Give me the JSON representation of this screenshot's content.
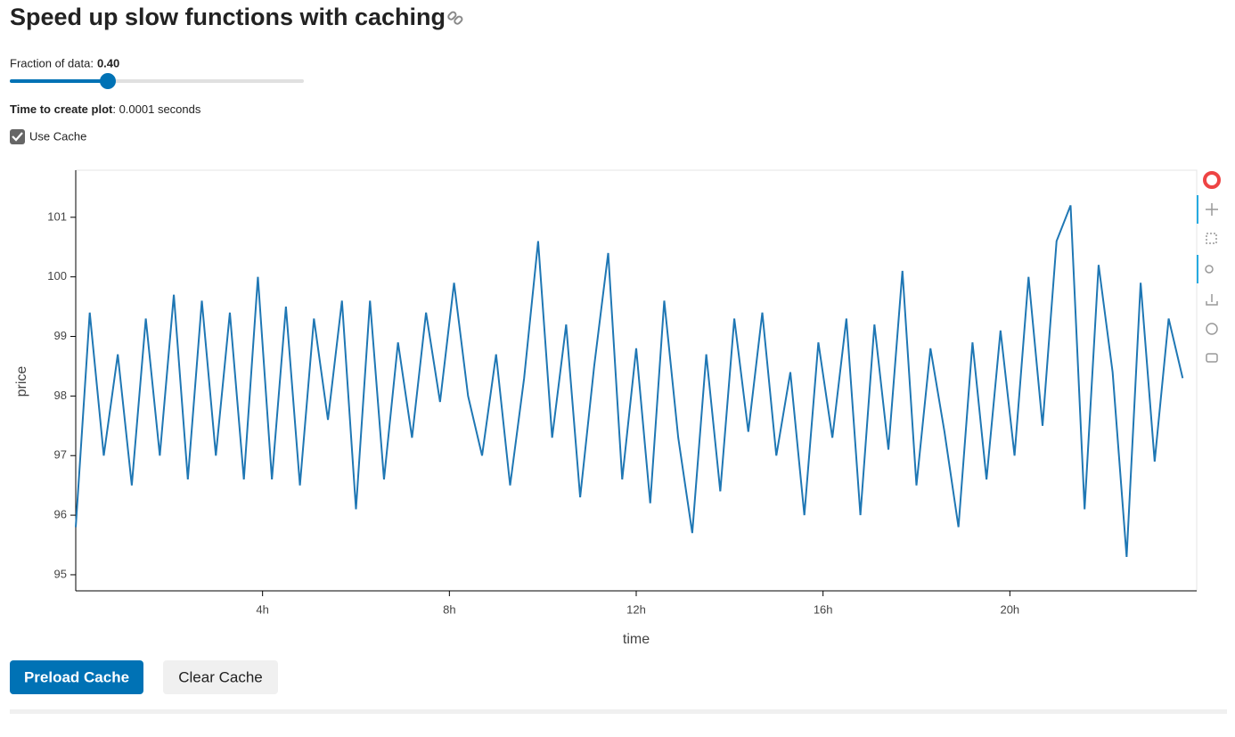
{
  "header": {
    "title": "Speed up slow functions with caching"
  },
  "controls": {
    "slider": {
      "label": "Fraction of data:",
      "value": "0.40"
    },
    "timing": {
      "label": "Time to create plot",
      "text": ": 0.0001 seconds"
    },
    "checkbox": {
      "label": "Use Cache",
      "checked": true
    }
  },
  "chart_data": {
    "type": "line",
    "x_label": "time",
    "y_label": "price",
    "xlim": [
      0,
      24
    ],
    "ylim": [
      94.73,
      101.79
    ],
    "xticks": [
      {
        "value": 4,
        "label": "4h"
      },
      {
        "value": 8,
        "label": "8h"
      },
      {
        "value": 12,
        "label": "12h"
      },
      {
        "value": 16,
        "label": "16h"
      },
      {
        "value": 20,
        "label": "20h"
      }
    ],
    "yticks": [
      95,
      96,
      97,
      98,
      99,
      100,
      101
    ],
    "x": [
      0.0,
      0.3,
      0.6,
      0.9,
      1.2,
      1.5,
      1.8,
      2.1,
      2.4,
      2.7,
      3.0,
      3.3,
      3.6,
      3.9,
      4.2,
      4.5,
      4.8,
      5.1,
      5.4,
      5.7,
      6.0,
      6.3,
      6.6,
      6.9,
      7.2,
      7.5,
      7.8,
      8.1,
      8.4,
      8.7,
      9.0,
      9.3,
      9.6,
      9.9,
      10.2,
      10.5,
      10.8,
      11.1,
      11.4,
      11.7,
      12.0,
      12.3,
      12.6,
      12.9,
      13.2,
      13.5,
      13.8,
      14.1,
      14.4,
      14.7,
      15.0,
      15.3,
      15.6,
      15.9,
      16.2,
      16.5,
      16.8,
      17.1,
      17.4,
      17.7,
      18.0,
      18.3,
      18.6,
      18.9,
      19.2,
      19.5,
      19.8,
      20.1,
      20.4,
      20.7,
      21.0,
      21.3,
      21.6,
      21.9,
      22.2,
      22.5,
      22.8,
      23.1,
      23.4,
      23.7
    ],
    "series": [
      {
        "name": "price",
        "color": "#1f77b4",
        "values": [
          95.8,
          99.4,
          97.0,
          98.7,
          96.5,
          99.3,
          97.0,
          99.7,
          96.6,
          99.6,
          97.0,
          99.4,
          96.6,
          100.0,
          96.6,
          99.5,
          96.5,
          99.3,
          97.6,
          99.6,
          96.1,
          99.6,
          96.6,
          98.9,
          97.3,
          99.4,
          97.9,
          99.9,
          98.0,
          97.0,
          98.7,
          96.5,
          98.3,
          100.6,
          97.3,
          99.2,
          96.3,
          98.5,
          100.4,
          96.6,
          98.8,
          96.2,
          99.6,
          97.3,
          95.7,
          98.7,
          96.4,
          99.3,
          97.4,
          99.4,
          97.0,
          98.4,
          96.0,
          98.9,
          97.3,
          99.3,
          96.0,
          99.2,
          97.1,
          100.1,
          96.5,
          98.8,
          97.4,
          95.8,
          98.9,
          96.6,
          99.1,
          97.0,
          100.0,
          97.5,
          100.6,
          101.2,
          96.1,
          100.2,
          98.4,
          95.3,
          99.9,
          96.9,
          99.3,
          98.3
        ]
      }
    ]
  },
  "buttons": [
    "Preload Cache",
    "Clear Cache"
  ]
}
